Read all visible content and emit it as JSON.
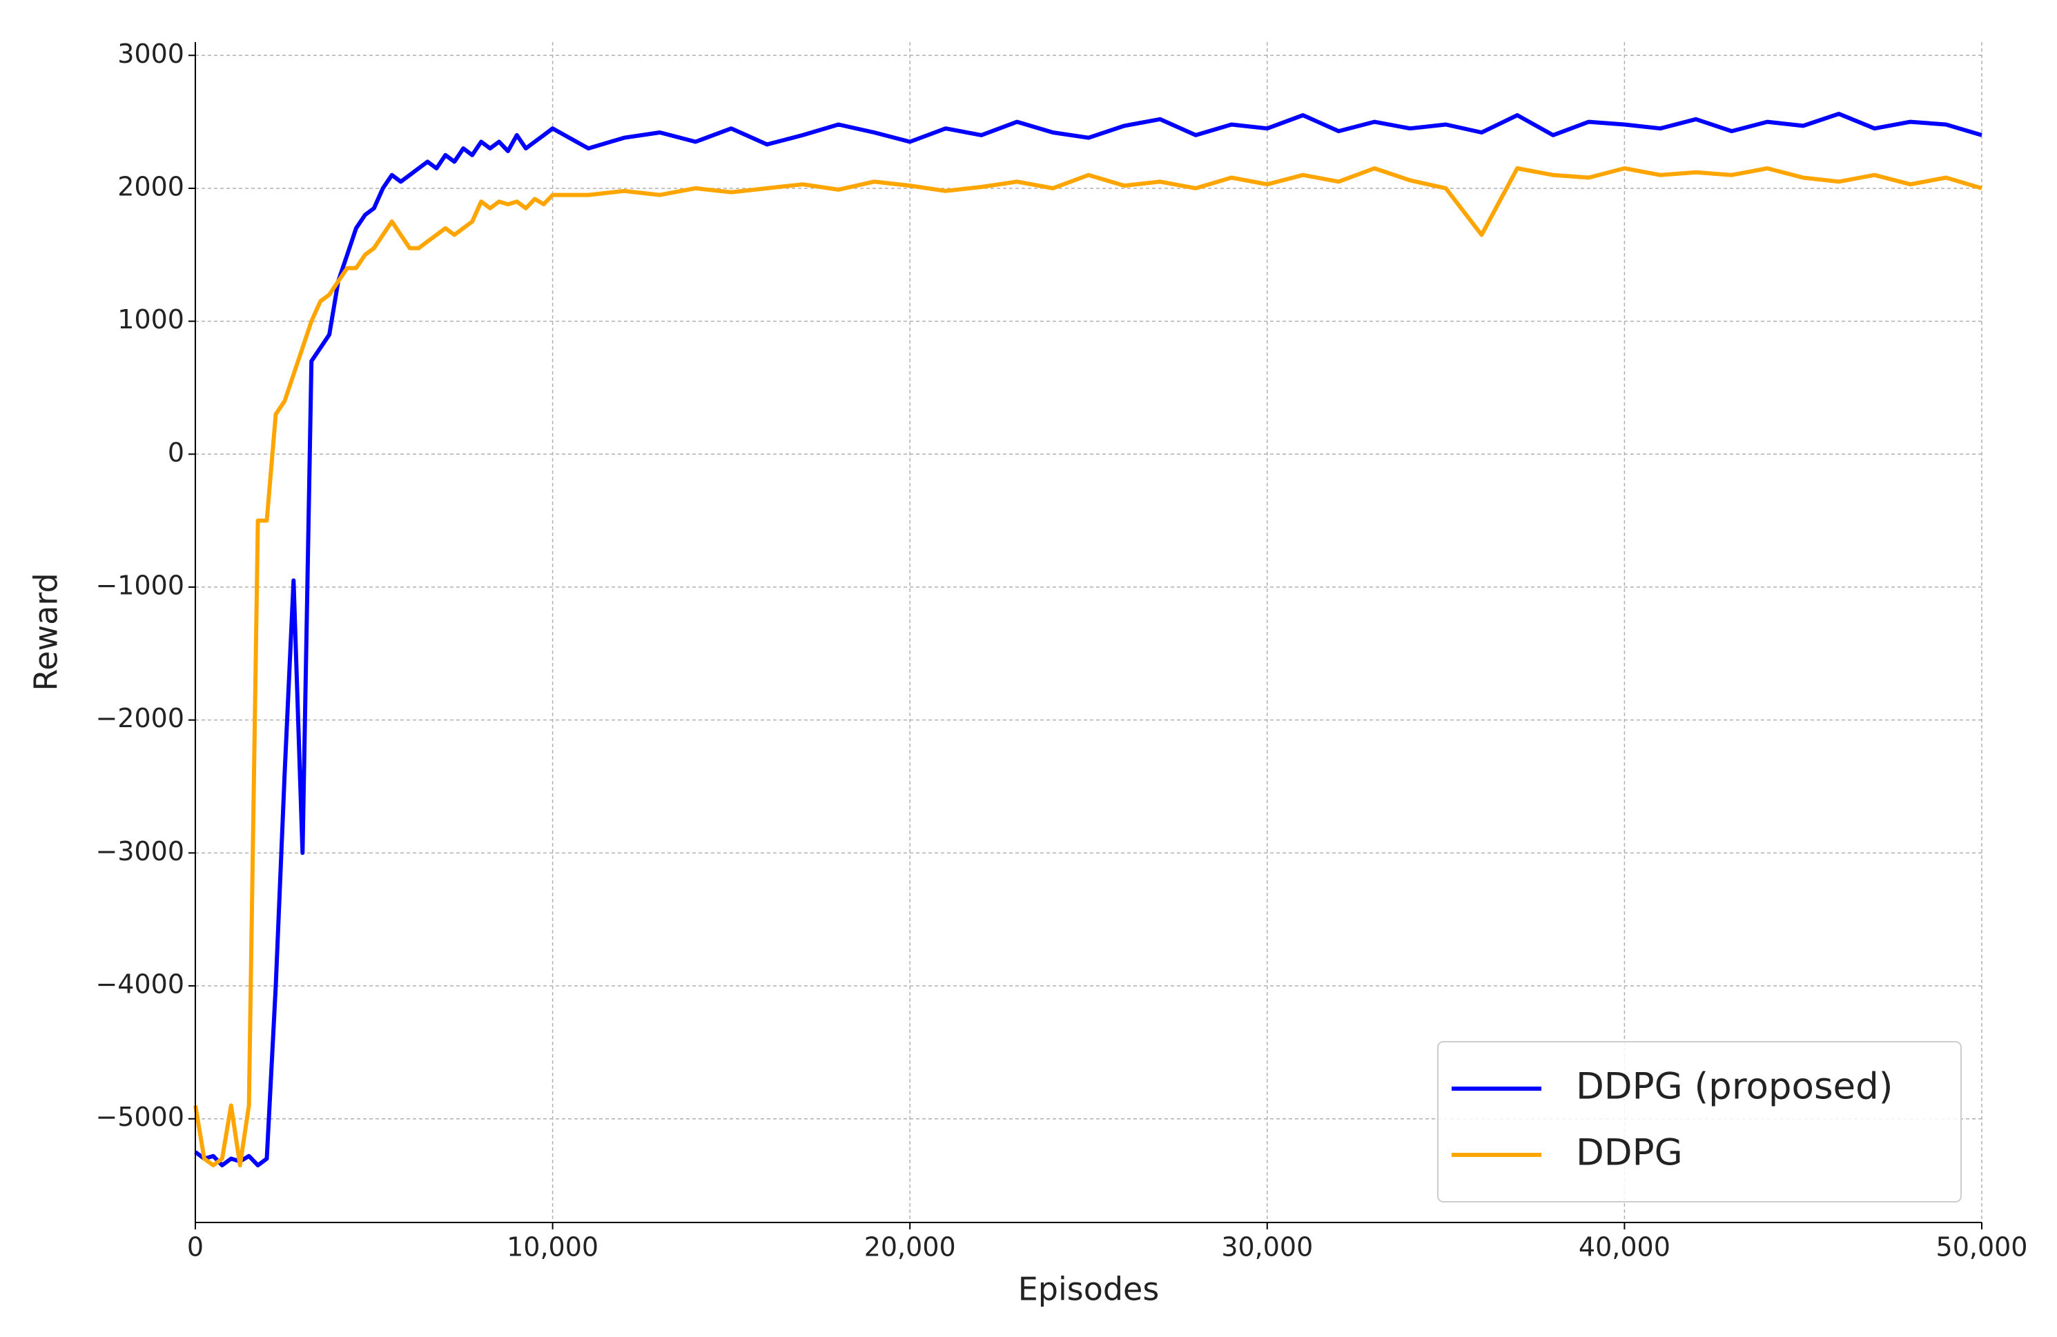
{
  "chart_data": {
    "type": "line",
    "xlabel": "Episodes",
    "ylabel": "Reward",
    "xlim": [
      0,
      50000
    ],
    "ylim": [
      -5780,
      3100
    ],
    "xticks": [
      0,
      {
        "value": 10000,
        "label": "10,000"
      },
      {
        "value": 20000,
        "label": "20,000"
      },
      {
        "value": 30000,
        "label": "30,000"
      },
      {
        "value": 40000,
        "label": "40,000"
      },
      {
        "value": 50000,
        "label": "50,000"
      }
    ],
    "yticks": [
      {
        "value": -5000,
        "label": "−5000"
      },
      {
        "value": -4000,
        "label": "−4000"
      },
      {
        "value": -3000,
        "label": "−3000"
      },
      {
        "value": -2000,
        "label": "−2000"
      },
      {
        "value": -1000,
        "label": "−1000"
      },
      0,
      1000,
      2000,
      3000
    ],
    "grid": true,
    "legend": "lower right",
    "x": [
      0,
      250,
      500,
      750,
      1000,
      1250,
      1500,
      1750,
      2000,
      2250,
      2500,
      2750,
      3000,
      3250,
      3500,
      3750,
      4000,
      4250,
      4500,
      4750,
      5000,
      5250,
      5500,
      5750,
      6000,
      6250,
      6500,
      6750,
      7000,
      7250,
      7500,
      7750,
      8000,
      8250,
      8500,
      8750,
      9000,
      9250,
      9500,
      9750,
      10000,
      11000,
      12000,
      13000,
      14000,
      15000,
      16000,
      17000,
      18000,
      19000,
      20000,
      21000,
      22000,
      23000,
      24000,
      25000,
      26000,
      27000,
      28000,
      29000,
      30000,
      31000,
      32000,
      33000,
      34000,
      35000,
      36000,
      37000,
      38000,
      39000,
      40000,
      41000,
      42000,
      43000,
      44000,
      45000,
      46000,
      47000,
      48000,
      49000,
      50000
    ],
    "series": [
      {
        "name": "DDPG (proposed)",
        "color": "#0000ff",
        "values": [
          -5250,
          -5300,
          -5280,
          -5350,
          -5300,
          -5320,
          -5280,
          -5350,
          -5300,
          -4000,
          -2400,
          -950,
          -3000,
          700,
          800,
          900,
          1300,
          1500,
          1700,
          1800,
          1850,
          2000,
          2100,
          2050,
          2100,
          2150,
          2200,
          2150,
          2250,
          2200,
          2300,
          2250,
          2350,
          2300,
          2350,
          2280,
          2400,
          2300,
          2350,
          2400,
          2450,
          2300,
          2380,
          2420,
          2350,
          2450,
          2330,
          2400,
          2480,
          2420,
          2350,
          2450,
          2400,
          2500,
          2420,
          2380,
          2470,
          2520,
          2400,
          2480,
          2450,
          2550,
          2430,
          2500,
          2450,
          2480,
          2420,
          2550,
          2400,
          2500,
          2480,
          2450,
          2520,
          2430,
          2500,
          2470,
          2560,
          2450,
          2500,
          2480,
          2400
        ]
      },
      {
        "name": "DDPG",
        "color": "#ffa500",
        "values": [
          -4900,
          -5300,
          -5350,
          -5300,
          -4900,
          -5350,
          -4900,
          -500,
          -500,
          300,
          400,
          600,
          800,
          1000,
          1150,
          1200,
          1300,
          1400,
          1400,
          1500,
          1550,
          1650,
          1750,
          1650,
          1550,
          1550,
          1600,
          1650,
          1700,
          1650,
          1700,
          1750,
          1900,
          1850,
          1900,
          1880,
          1900,
          1850,
          1920,
          1880,
          1950,
          1950,
          1980,
          1950,
          2000,
          1970,
          2000,
          2030,
          1990,
          2050,
          2020,
          1980,
          2010,
          2050,
          2000,
          2100,
          2020,
          2050,
          2000,
          2080,
          2030,
          2100,
          2050,
          2150,
          2060,
          2000,
          1650,
          2150,
          2100,
          2080,
          2150,
          2100,
          2120,
          2100,
          2150,
          2080,
          2050,
          2100,
          2030,
          2080,
          2000
        ]
      }
    ]
  }
}
